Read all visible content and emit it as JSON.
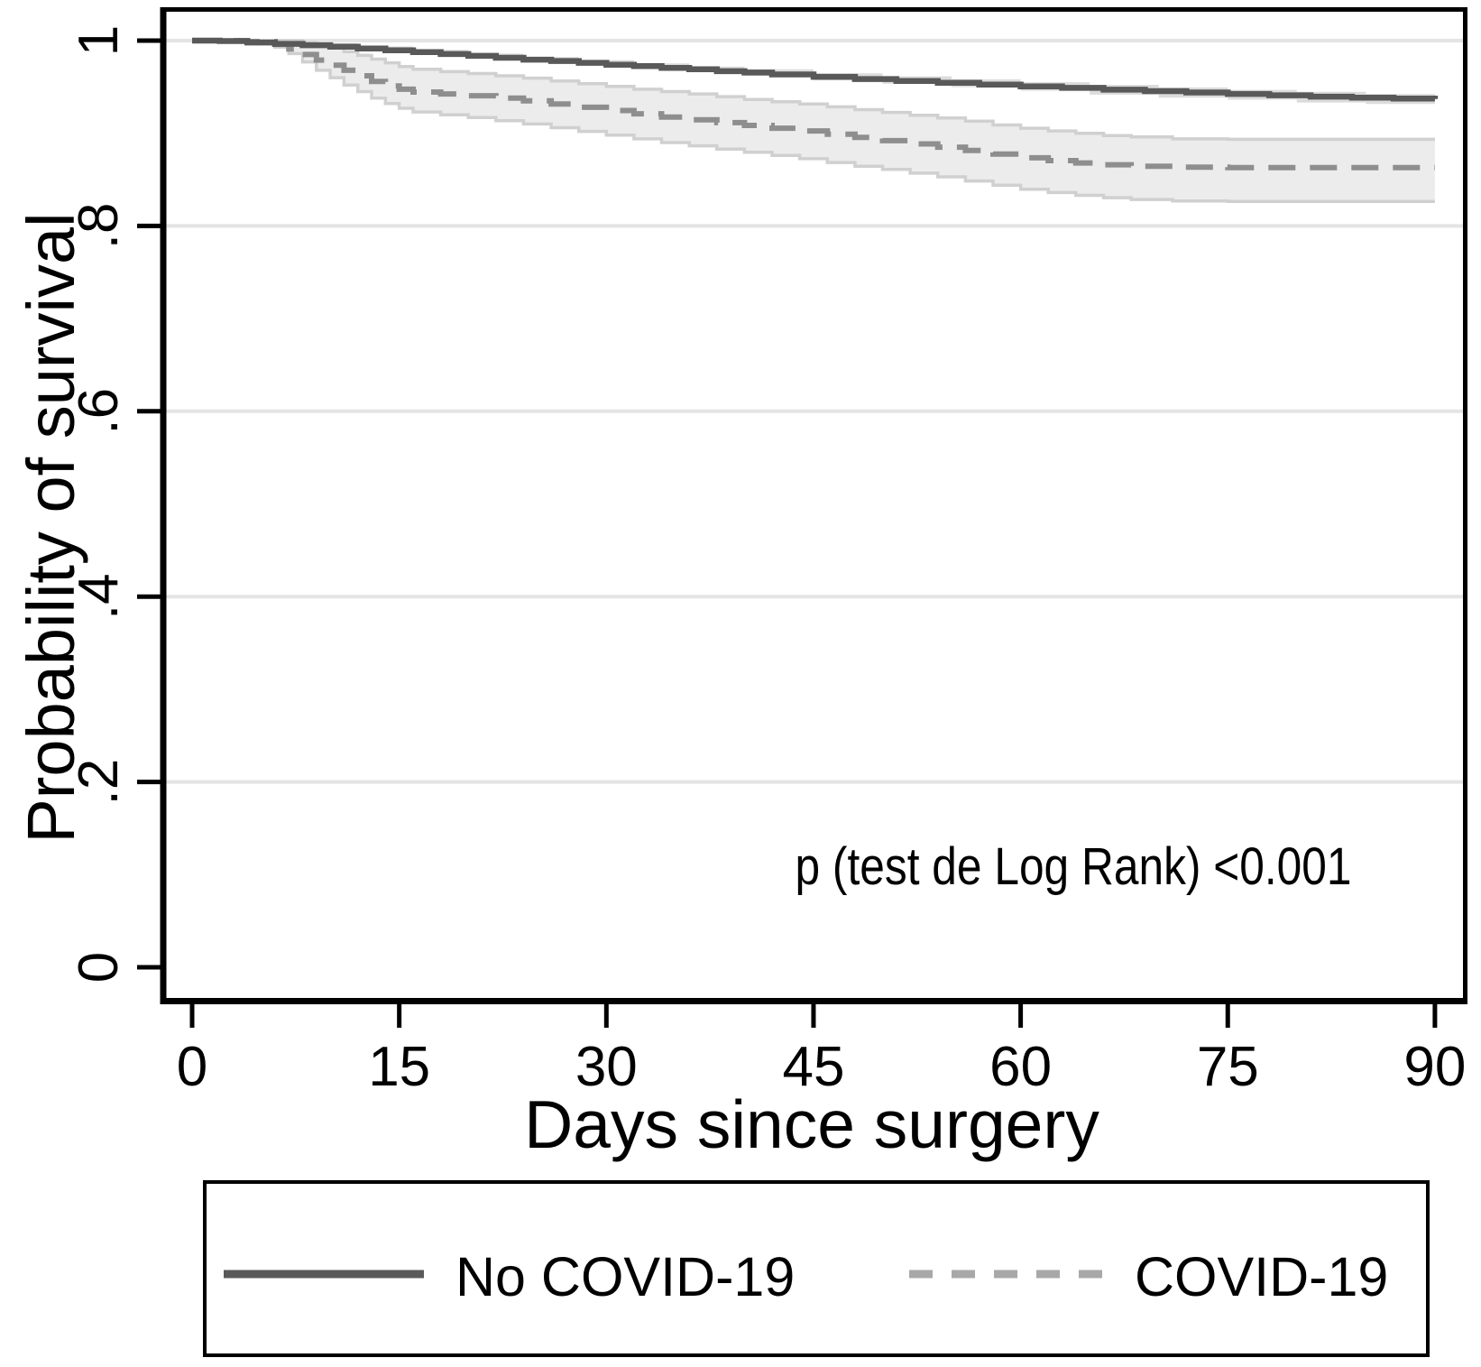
{
  "colors": {
    "background": "#ffffff",
    "axis": "#000000",
    "grid": "#e4e4e4",
    "text": "#000000",
    "no_covid_line": "#595959",
    "no_covid_ci_fill": "#dcdcdc",
    "covid_line": "#8e8e8e",
    "covid_ci_fill": "#ececec",
    "covid_ci_edge": "#d0d0d0",
    "legend_dash_sample": "#a8a8a8",
    "legend_border": "#000000"
  },
  "axes": {
    "y": {
      "label": "Probability of survival",
      "ticks": [
        "0",
        ".2",
        ".4",
        ".6",
        ".8",
        "1"
      ]
    },
    "x": {
      "label": "Days since surgery",
      "ticks": [
        "0",
        "15",
        "30",
        "45",
        "60",
        "75",
        "90"
      ]
    }
  },
  "annotation": {
    "text": "p (test de Log Rank) <0.001"
  },
  "legend": {
    "items": [
      {
        "label": "No COVID-19",
        "style": "solid"
      },
      {
        "label": "COVID-19",
        "style": "dashed"
      }
    ]
  },
  "chart_data": {
    "type": "line",
    "subtype": "kaplan-meier-step",
    "title": "",
    "xlabel": "Days since surgery",
    "ylabel": "Probability of survival",
    "xlim": [
      0,
      90
    ],
    "ylim": [
      0,
      1
    ],
    "x_ticks": [
      0,
      15,
      30,
      45,
      60,
      75,
      90
    ],
    "y_ticks": [
      0,
      0.2,
      0.4,
      0.6,
      0.8,
      1
    ],
    "grid": "horizontal",
    "legend_position": "bottom",
    "annotation_text": "p (test de Log Rank) <0.001",
    "series": [
      {
        "id": "no-covid",
        "name": "No COVID-19",
        "line_style": "solid",
        "color": "#595959",
        "points": [
          [
            0,
            1
          ],
          [
            2,
            0.9995
          ],
          [
            4,
            0.998
          ],
          [
            6,
            0.9965
          ],
          [
            8,
            0.995
          ],
          [
            10,
            0.9935
          ],
          [
            12,
            0.9915
          ],
          [
            14,
            0.9895
          ],
          [
            16,
            0.9875
          ],
          [
            18,
            0.9855
          ],
          [
            20,
            0.9835
          ],
          [
            22,
            0.9815
          ],
          [
            24,
            0.9795
          ],
          [
            26,
            0.978
          ],
          [
            28,
            0.976
          ],
          [
            30,
            0.974
          ],
          [
            32,
            0.9725
          ],
          [
            34,
            0.9705
          ],
          [
            36,
            0.969
          ],
          [
            38,
            0.967
          ],
          [
            40,
            0.9655
          ],
          [
            42,
            0.9635
          ],
          [
            45,
            0.961
          ],
          [
            48,
            0.9585
          ],
          [
            51,
            0.9565
          ],
          [
            54,
            0.9545
          ],
          [
            57,
            0.9525
          ],
          [
            60,
            0.9505
          ],
          [
            63,
            0.949
          ],
          [
            66,
            0.947
          ],
          [
            69,
            0.9455
          ],
          [
            72,
            0.944
          ],
          [
            75,
            0.9425
          ],
          [
            78,
            0.941
          ],
          [
            81,
            0.9395
          ],
          [
            84,
            0.9385
          ],
          [
            87,
            0.9375
          ],
          [
            90,
            0.937
          ]
        ],
        "ci": {
          "fill": "#dcdcdc",
          "edge_color": null,
          "upper": [
            [
              0,
              1
            ],
            [
              4,
              0.9997
            ],
            [
              8,
              0.9972
            ],
            [
              12,
              0.9937
            ],
            [
              16,
              0.99
            ],
            [
              20,
              0.986
            ],
            [
              24,
              0.9822
            ],
            [
              28,
              0.979
            ],
            [
              32,
              0.9755
            ],
            [
              36,
              0.972
            ],
            [
              40,
              0.969
            ],
            [
              45,
              0.9648
            ],
            [
              50,
              0.9615
            ],
            [
              55,
              0.9582
            ],
            [
              60,
              0.9551
            ],
            [
              65,
              0.9523
            ],
            [
              70,
              0.9495
            ],
            [
              75,
              0.9468
            ],
            [
              80,
              0.9448
            ],
            [
              85,
              0.9425
            ],
            [
              90,
              0.9415
            ]
          ],
          "lower": [
            [
              0,
              1
            ],
            [
              4,
              0.9963
            ],
            [
              8,
              0.9928
            ],
            [
              12,
              0.9893
            ],
            [
              16,
              0.985
            ],
            [
              20,
              0.981
            ],
            [
              24,
              0.9768
            ],
            [
              28,
              0.973
            ],
            [
              32,
              0.9695
            ],
            [
              36,
              0.966
            ],
            [
              40,
              0.962
            ],
            [
              45,
              0.9572
            ],
            [
              50,
              0.9535
            ],
            [
              55,
              0.9498
            ],
            [
              60,
              0.9459
            ],
            [
              65,
              0.9417
            ],
            [
              70,
              0.9385
            ],
            [
              75,
              0.9362
            ],
            [
              80,
              0.9332
            ],
            [
              85,
              0.9315
            ],
            [
              90,
              0.9305
            ]
          ]
        }
      },
      {
        "id": "covid",
        "name": "COVID-19",
        "line_style": "dashed",
        "color": "#8e8e8e",
        "points": [
          [
            0,
            1
          ],
          [
            4,
            0.999
          ],
          [
            6,
            0.996
          ],
          [
            7,
            0.991
          ],
          [
            8,
            0.985
          ],
          [
            9,
            0.979
          ],
          [
            10,
            0.9735
          ],
          [
            11,
            0.968
          ],
          [
            12,
            0.962
          ],
          [
            13,
            0.956
          ],
          [
            14,
            0.951
          ],
          [
            15,
            0.9475
          ],
          [
            16,
            0.9445
          ],
          [
            18,
            0.9425
          ],
          [
            20,
            0.9405
          ],
          [
            22,
            0.938
          ],
          [
            24,
            0.935
          ],
          [
            26,
            0.9315
          ],
          [
            28,
            0.928
          ],
          [
            30,
            0.9245
          ],
          [
            32,
            0.921
          ],
          [
            34,
            0.9175
          ],
          [
            36,
            0.9145
          ],
          [
            38,
            0.9115
          ],
          [
            40,
            0.9085
          ],
          [
            42,
            0.9055
          ],
          [
            44,
            0.9025
          ],
          [
            46,
            0.899
          ],
          [
            48,
            0.8955
          ],
          [
            50,
            0.892
          ],
          [
            52,
            0.8885
          ],
          [
            54,
            0.885
          ],
          [
            56,
            0.8815
          ],
          [
            58,
            0.8775
          ],
          [
            60,
            0.8735
          ],
          [
            62,
            0.8705
          ],
          [
            64,
            0.868
          ],
          [
            66,
            0.866
          ],
          [
            68,
            0.8645
          ],
          [
            71,
            0.8635
          ],
          [
            75,
            0.863
          ],
          [
            90,
            0.863
          ]
        ],
        "ci": {
          "fill": "#ececec",
          "edge_color": "#d0d0d0",
          "upper": [
            [
              0,
              1
            ],
            [
              6,
              1
            ],
            [
              8,
              0.998
            ],
            [
              9,
              0.995
            ],
            [
              10,
              0.992
            ],
            [
              11,
              0.988
            ],
            [
              12,
              0.984
            ],
            [
              13,
              0.98
            ],
            [
              14,
              0.976
            ],
            [
              15,
              0.972
            ],
            [
              16,
              0.969
            ],
            [
              18,
              0.9665
            ],
            [
              20,
              0.9645
            ],
            [
              22,
              0.962
            ],
            [
              24,
              0.9595
            ],
            [
              26,
              0.9565
            ],
            [
              28,
              0.9535
            ],
            [
              30,
              0.9505
            ],
            [
              32,
              0.9475
            ],
            [
              34,
              0.945
            ],
            [
              36,
              0.9425
            ],
            [
              38,
              0.9395
            ],
            [
              40,
              0.9365
            ],
            [
              42,
              0.934
            ],
            [
              44,
              0.9315
            ],
            [
              46,
              0.9285
            ],
            [
              48,
              0.9255
            ],
            [
              50,
              0.9225
            ],
            [
              52,
              0.9195
            ],
            [
              54,
              0.9165
            ],
            [
              56,
              0.913
            ],
            [
              58,
              0.909
            ],
            [
              60,
              0.9055
            ],
            [
              62,
              0.9025
            ],
            [
              64,
              0.9
            ],
            [
              66,
              0.8975
            ],
            [
              68,
              0.896
            ],
            [
              71,
              0.894
            ],
            [
              75,
              0.8935
            ],
            [
              90,
              0.8935
            ]
          ],
          "lower": [
            [
              0,
              1
            ],
            [
              4,
              0.998
            ],
            [
              6,
              0.993
            ],
            [
              7,
              0.986
            ],
            [
              8,
              0.977
            ],
            [
              9,
              0.968
            ],
            [
              10,
              0.96
            ],
            [
              11,
              0.952
            ],
            [
              12,
              0.945
            ],
            [
              13,
              0.938
            ],
            [
              14,
              0.932
            ],
            [
              15,
              0.927
            ],
            [
              16,
              0.923
            ],
            [
              18,
              0.92
            ],
            [
              20,
              0.917
            ],
            [
              22,
              0.9135
            ],
            [
              24,
              0.91
            ],
            [
              26,
              0.906
            ],
            [
              28,
              0.902
            ],
            [
              30,
              0.898
            ],
            [
              32,
              0.894
            ],
            [
              34,
              0.89
            ],
            [
              36,
              0.8865
            ],
            [
              38,
              0.883
            ],
            [
              40,
              0.8795
            ],
            [
              42,
              0.876
            ],
            [
              44,
              0.8725
            ],
            [
              46,
              0.8685
            ],
            [
              48,
              0.8645
            ],
            [
              50,
              0.861
            ],
            [
              52,
              0.857
            ],
            [
              54,
              0.853
            ],
            [
              56,
              0.8485
            ],
            [
              58,
              0.844
            ],
            [
              60,
              0.8395
            ],
            [
              62,
              0.836
            ],
            [
              64,
              0.833
            ],
            [
              66,
              0.8305
            ],
            [
              68,
              0.8285
            ],
            [
              71,
              0.827
            ],
            [
              75,
              0.8265
            ],
            [
              90,
              0.8265
            ]
          ]
        }
      }
    ]
  }
}
